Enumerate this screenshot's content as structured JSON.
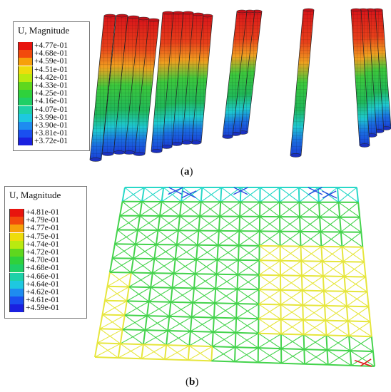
{
  "panel_a": {
    "legend_title": "U,  Magnitude",
    "legend_values": [
      "+4.77e-01",
      "+4.68e-01",
      "+4.59e-01",
      "+4.51e-01",
      "+4.42e-01",
      "+4.33e-01",
      "+4.25e-01",
      "+4.16e-01",
      "+4.07e-01",
      "+3.99e-01",
      "+3.90e-01",
      "+3.81e-01",
      "+3.72e-01"
    ],
    "legend_colors": [
      "#e8140e",
      "#f24a0c",
      "#f7a00a",
      "#eedc0c",
      "#b9ea10",
      "#5fd71e",
      "#2fd13c",
      "#1fcf66",
      "#1ed1a8",
      "#1ec8e0",
      "#1e8cf0",
      "#1a4ff0",
      "#1a20e0"
    ],
    "caption_letter": "a"
  },
  "panel_b": {
    "legend_title": "U,  Magnitude",
    "legend_values": [
      "+4.81e-01",
      "+4.79e-01",
      "+4.77e-01",
      "+4.75e-01",
      "+4.74e-01",
      "+4.72e-01",
      "+4.70e-01",
      "+4.68e-01",
      "+4.66e-01",
      "+4.64e-01",
      "+4.62e-01",
      "+4.61e-01",
      "+4.59e-01"
    ],
    "legend_colors": [
      "#e8140e",
      "#f24a0c",
      "#f7a00a",
      "#eedc0c",
      "#b9ea10",
      "#5fd71e",
      "#2fd13c",
      "#1fcf66",
      "#1ed1a8",
      "#1ec8e0",
      "#1e8cf0",
      "#1a4ff0",
      "#1a20e0"
    ],
    "caption_letter": "b"
  },
  "gradient_colors": {
    "top": "#d8141a",
    "upper": "#f0a020",
    "middle": "#3cc83c",
    "lower": "#1ec8d0",
    "bottom": "#1a3ed8"
  },
  "grid_colors": {
    "green": "#44d34c",
    "yellow": "#e6e63c",
    "cyan": "#28d8c8",
    "blue": "#2a4ae0",
    "red": "#e02020"
  }
}
